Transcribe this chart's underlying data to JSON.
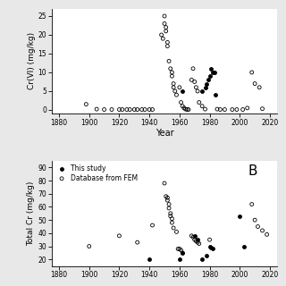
{
  "panel_A": {
    "ylabel": "Cr(VI) (mg/kg)",
    "xlabel": "Year",
    "xlim": [
      1875,
      2025
    ],
    "ylim": [
      -1,
      27
    ],
    "yticks": [
      0,
      5,
      10,
      15,
      20,
      25
    ],
    "xticks": [
      1880,
      1900,
      1920,
      1940,
      1960,
      1980,
      2000,
      2020
    ],
    "open_x": [
      1898,
      1905,
      1910,
      1915,
      1920,
      1922,
      1925,
      1927,
      1930,
      1932,
      1935,
      1937,
      1940,
      1942,
      1948,
      1949,
      1950,
      1950,
      1951,
      1951,
      1952,
      1952,
      1953,
      1954,
      1955,
      1955,
      1956,
      1956,
      1957,
      1958,
      1960,
      1961,
      1962,
      1963,
      1964,
      1965,
      1966,
      1968,
      1969,
      1970,
      1971,
      1972,
      1973,
      1975,
      1977,
      1985,
      1987,
      1990,
      1995,
      1998,
      2002,
      2005,
      2008,
      2010,
      2013,
      2015
    ],
    "open_y": [
      1.5,
      0.2,
      0.1,
      0.1,
      0.1,
      0.1,
      0.1,
      0.1,
      0.1,
      0.1,
      0.1,
      0.1,
      0.1,
      0.1,
      20,
      19,
      25,
      23,
      22,
      21,
      18,
      17,
      13,
      11,
      10,
      9,
      7,
      6,
      5,
      4,
      6,
      2,
      1,
      0.5,
      0.2,
      0.1,
      0.1,
      8,
      11,
      7.5,
      6,
      5,
      2,
      1,
      0.2,
      0.2,
      0.1,
      0.1,
      0.1,
      0.1,
      0.1,
      0.5,
      10,
      7,
      6,
      0.3
    ],
    "filled_x": [
      1962,
      1975,
      1977,
      1978,
      1979,
      1980,
      1981,
      1982,
      1983,
      1984
    ],
    "filled_y": [
      5,
      5,
      6,
      7,
      8,
      9,
      11,
      10,
      10,
      4
    ]
  },
  "panel_B": {
    "ylabel": "Total Cr (mg/kg)",
    "xlim": [
      1875,
      2025
    ],
    "ylim": [
      15,
      95
    ],
    "yticks": [
      20,
      30,
      40,
      50,
      60,
      70,
      80,
      90
    ],
    "xticks": [
      1880,
      1900,
      1920,
      1940,
      1960,
      1980,
      2000,
      2020
    ],
    "label_B": "B",
    "legend_filled": "This study",
    "legend_open": "Database from FEM",
    "open_x": [
      1900,
      1920,
      1932,
      1942,
      1950,
      1951,
      1952,
      1952,
      1953,
      1953,
      1954,
      1954,
      1955,
      1955,
      1956,
      1958,
      1959,
      1960,
      1961,
      1962,
      1968,
      1969,
      1970,
      1971,
      1972,
      1973,
      1980,
      2008,
      2010,
      2012,
      2015,
      2018
    ],
    "open_y": [
      30,
      38,
      33,
      46,
      78,
      68,
      67,
      65,
      62,
      59,
      55,
      53,
      51,
      48,
      44,
      41,
      28,
      28,
      27,
      25,
      38,
      37,
      35,
      34,
      33,
      32,
      35,
      62,
      50,
      45,
      42,
      39
    ],
    "filled_x": [
      1940,
      1960,
      1962,
      1970,
      1972,
      1975,
      1978,
      1980,
      1981,
      1982,
      2000,
      2003
    ],
    "filled_y": [
      20,
      20,
      25,
      38,
      35,
      20,
      23,
      30,
      29,
      28,
      53,
      30
    ]
  },
  "bg_color": "#e8e8e8",
  "plot_bg": "#ffffff"
}
